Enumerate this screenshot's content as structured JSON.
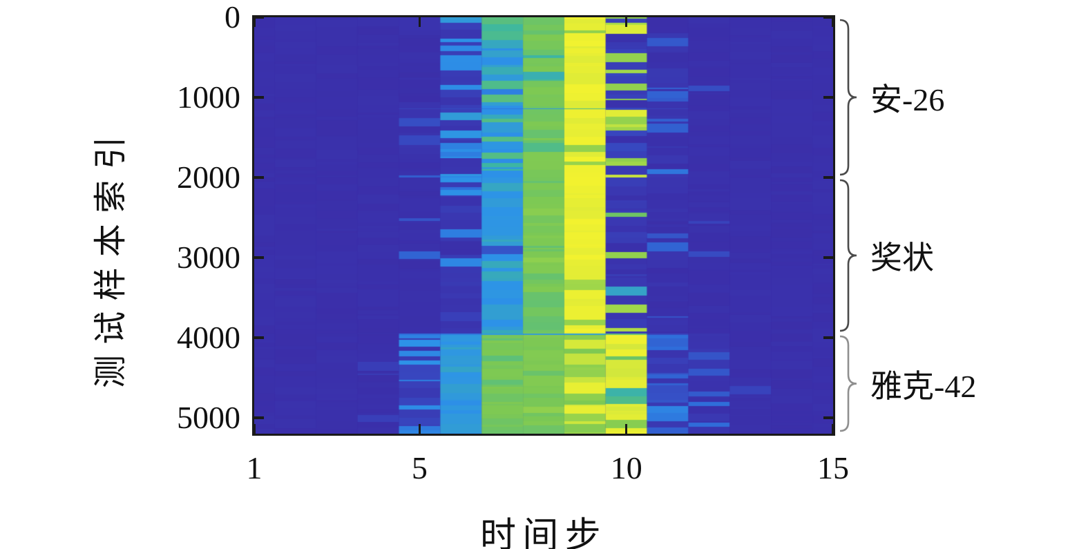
{
  "figure": {
    "background": "#ffffff",
    "axis_color": "#1a1a1a",
    "text_color": "#111111",
    "brace_colors": [
      "#4a4a4a",
      "#4a4a4a",
      "#8f8f8f"
    ]
  },
  "chart_data": {
    "type": "heatmap",
    "xlabel": "时间步",
    "ylabel": "测试样本索引",
    "x_ticks": [
      1,
      5,
      10,
      15
    ],
    "y_ticks": [
      0,
      1000,
      2000,
      3000,
      4000,
      5000
    ],
    "x_range": [
      1,
      15
    ],
    "y_range": [
      0,
      5200
    ],
    "time_steps": 15,
    "grid": false,
    "legend": "none",
    "colormap": {
      "name": "parula-like",
      "stops": [
        [
          0.0,
          "#3B2BA6"
        ],
        [
          0.15,
          "#3845BE"
        ],
        [
          0.3,
          "#2F6FDB"
        ],
        [
          0.42,
          "#2D93E8"
        ],
        [
          0.55,
          "#3EB7A0"
        ],
        [
          0.65,
          "#7CC854"
        ],
        [
          0.8,
          "#AADB47"
        ],
        [
          0.9,
          "#D8E93A"
        ],
        [
          1.0,
          "#F5F32E"
        ]
      ]
    },
    "classes": [
      {
        "label": "安-26",
        "row_start": 0,
        "row_end": 2000
      },
      {
        "label": "奖状",
        "row_start": 2000,
        "row_end": 3950
      },
      {
        "label": "雅克-42",
        "row_start": 3950,
        "row_end": 5200
      }
    ],
    "column_spec_format": "[base_value, variation, alt_probability, alt_value, alt_variation] for time steps 1..15; values in 0..1 mapped through colormap",
    "sections": [
      {
        "class": "安-26",
        "rows": [
          0,
          2000
        ],
        "pattern": [
          [
            0.03,
            0.01,
            0,
            0,
            0
          ],
          [
            0.03,
            0.01,
            0,
            0,
            0
          ],
          [
            0.03,
            0.01,
            0,
            0,
            0
          ],
          [
            0.03,
            0.01,
            0,
            0,
            0
          ],
          [
            0.04,
            0.02,
            0.1,
            0.22,
            0.06
          ],
          [
            0.4,
            0.06,
            0.38,
            0.07,
            0.05
          ],
          [
            0.5,
            0.1,
            0.18,
            0.33,
            0.06
          ],
          [
            0.64,
            0.03,
            0.05,
            0.55,
            0.04
          ],
          [
            0.95,
            0.04,
            0.18,
            0.74,
            0.06
          ],
          [
            0.1,
            0.07,
            0.4,
            0.85,
            0.14
          ],
          [
            0.05,
            0.03,
            0.14,
            0.3,
            0.08
          ],
          [
            0.03,
            0.01,
            0.05,
            0.18,
            0.05
          ],
          [
            0.03,
            0.01,
            0,
            0,
            0
          ],
          [
            0.03,
            0.01,
            0,
            0,
            0
          ],
          [
            0.03,
            0.01,
            0,
            0,
            0
          ]
        ]
      },
      {
        "class": "奖状",
        "rows": [
          2000,
          3950
        ],
        "pattern": [
          [
            0.03,
            0.01,
            0,
            0,
            0
          ],
          [
            0.03,
            0.01,
            0,
            0,
            0
          ],
          [
            0.03,
            0.01,
            0,
            0,
            0
          ],
          [
            0.03,
            0.01,
            0,
            0,
            0
          ],
          [
            0.03,
            0.01,
            0.07,
            0.22,
            0.05
          ],
          [
            0.07,
            0.05,
            0.22,
            0.36,
            0.07
          ],
          [
            0.45,
            0.05,
            0.1,
            0.26,
            0.06
          ],
          [
            0.64,
            0.03,
            0.06,
            0.72,
            0.04
          ],
          [
            0.96,
            0.03,
            0.1,
            0.76,
            0.05
          ],
          [
            0.07,
            0.04,
            0.3,
            0.6,
            0.25
          ],
          [
            0.04,
            0.02,
            0.1,
            0.26,
            0.07
          ],
          [
            0.03,
            0.01,
            0.04,
            0.15,
            0.04
          ],
          [
            0.03,
            0.01,
            0,
            0,
            0
          ],
          [
            0.03,
            0.01,
            0,
            0,
            0
          ],
          [
            0.03,
            0.01,
            0,
            0,
            0
          ]
        ]
      },
      {
        "class": "雅克-42",
        "rows": [
          3950,
          5200
        ],
        "pattern": [
          [
            0.03,
            0.01,
            0,
            0,
            0
          ],
          [
            0.03,
            0.01,
            0,
            0,
            0
          ],
          [
            0.03,
            0.01,
            0,
            0,
            0
          ],
          [
            0.03,
            0.01,
            0.06,
            0.12,
            0.04
          ],
          [
            0.1,
            0.06,
            0.45,
            0.36,
            0.06
          ],
          [
            0.44,
            0.04,
            0.08,
            0.3,
            0.08
          ],
          [
            0.63,
            0.03,
            0,
            0,
            0
          ],
          [
            0.65,
            0.03,
            0.08,
            0.75,
            0.05
          ],
          [
            0.7,
            0.05,
            0.35,
            0.9,
            0.06
          ],
          [
            0.93,
            0.05,
            0.12,
            0.55,
            0.15
          ],
          [
            0.28,
            0.1,
            0.35,
            0.07,
            0.05
          ],
          [
            0.05,
            0.03,
            0.15,
            0.28,
            0.08
          ],
          [
            0.03,
            0.01,
            0.05,
            0.15,
            0.04
          ],
          [
            0.03,
            0.01,
            0,
            0,
            0
          ],
          [
            0.03,
            0.01,
            0,
            0,
            0
          ]
        ]
      }
    ]
  }
}
